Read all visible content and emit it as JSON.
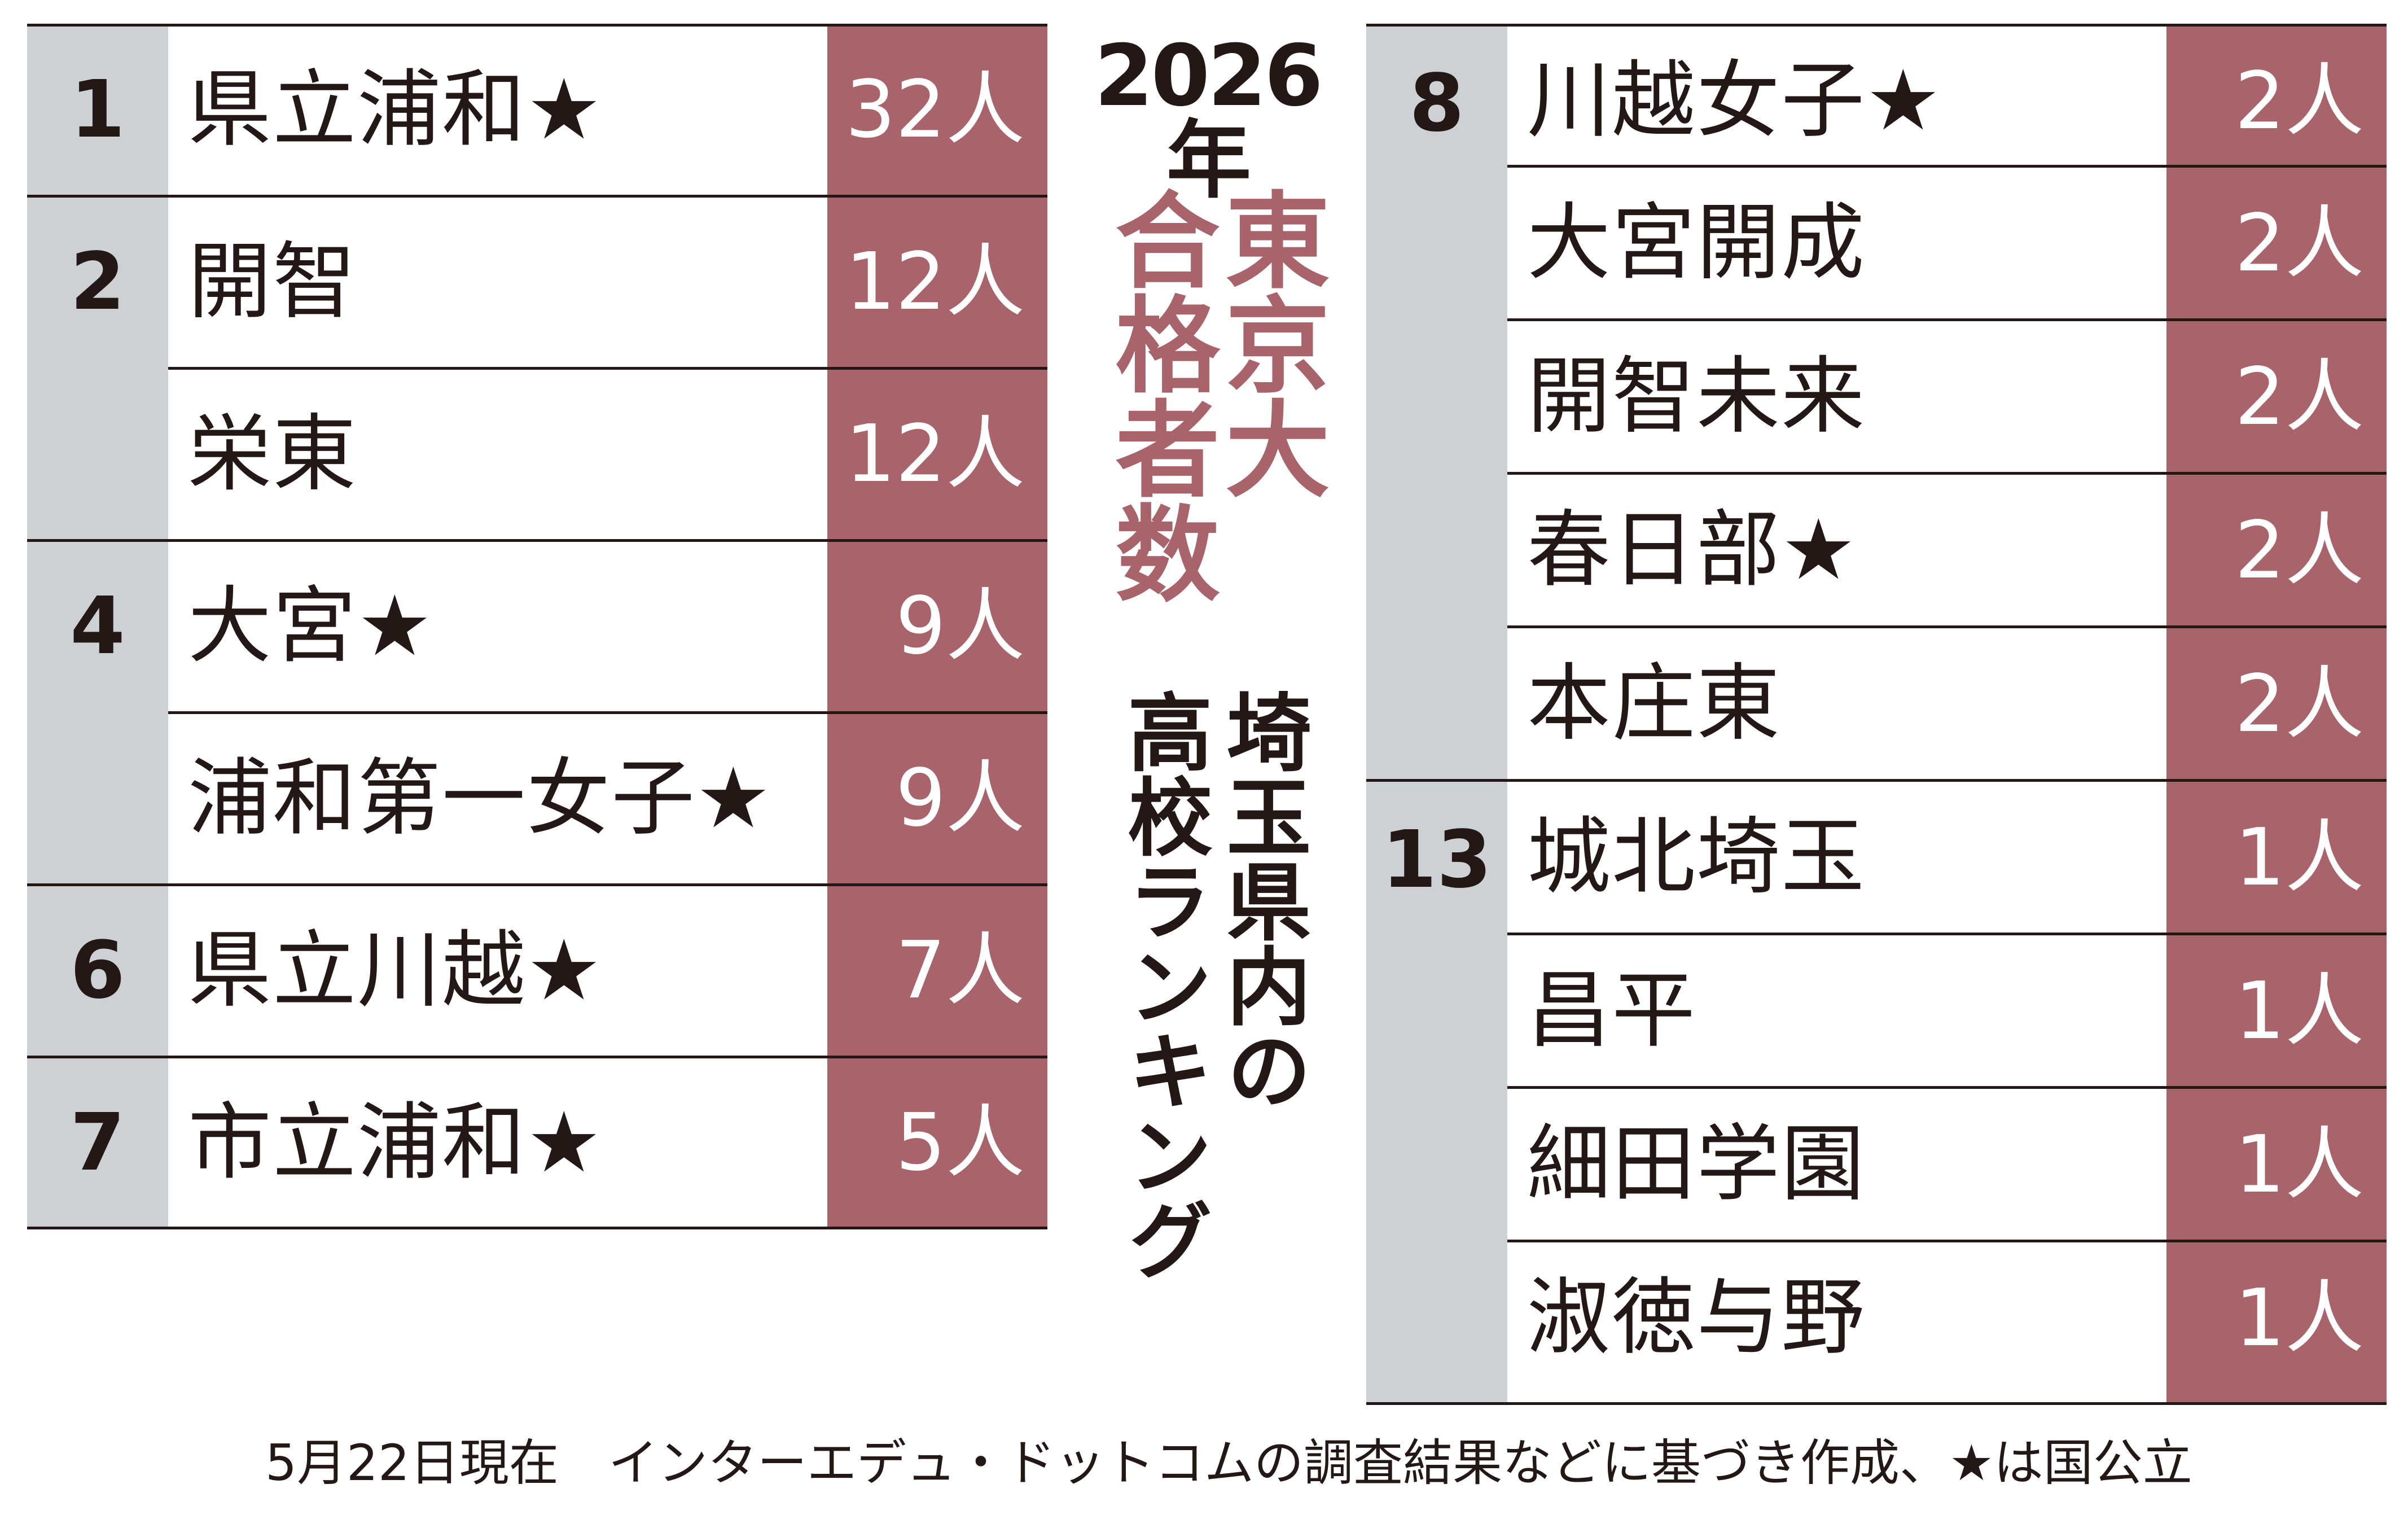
{
  "title": {
    "year": "2026年",
    "line1": "東京大",
    "line2": "合格者数",
    "line3": "埼玉県内の",
    "line4": "高校ランキング"
  },
  "colors": {
    "accent": "#a8636b",
    "rank_bg": "#cdd1d4",
    "text": "#231815"
  },
  "rankings": [
    {
      "rank": "1",
      "school": "県立浦和★",
      "count": "32人"
    },
    {
      "rank": "2",
      "school": "開智",
      "count": "12人"
    },
    {
      "rank": "",
      "school": "栄東",
      "count": "12人"
    },
    {
      "rank": "4",
      "school": "大宮★",
      "count": "9人"
    },
    {
      "rank": "",
      "school": "浦和第一女子★",
      "count": "9人"
    },
    {
      "rank": "6",
      "school": "県立川越★",
      "count": "7人"
    },
    {
      "rank": "7",
      "school": "市立浦和★",
      "count": "5人"
    },
    {
      "rank": "8",
      "school": "川越女子★",
      "count": "2人"
    },
    {
      "rank": "",
      "school": "大宮開成",
      "count": "2人"
    },
    {
      "rank": "",
      "school": "開智未来",
      "count": "2人"
    },
    {
      "rank": "",
      "school": "春日部★",
      "count": "2人"
    },
    {
      "rank": "",
      "school": "本庄東",
      "count": "2人"
    },
    {
      "rank": "13",
      "school": "城北埼玉",
      "count": "1人"
    },
    {
      "rank": "",
      "school": "昌平",
      "count": "1人"
    },
    {
      "rank": "",
      "school": "細田学園",
      "count": "1人"
    },
    {
      "rank": "",
      "school": "淑徳与野",
      "count": "1人"
    }
  ],
  "footnote": "5月22日現在　インターエデュ・ドットコムの調査結果などに基づき作成、★は国公立"
}
